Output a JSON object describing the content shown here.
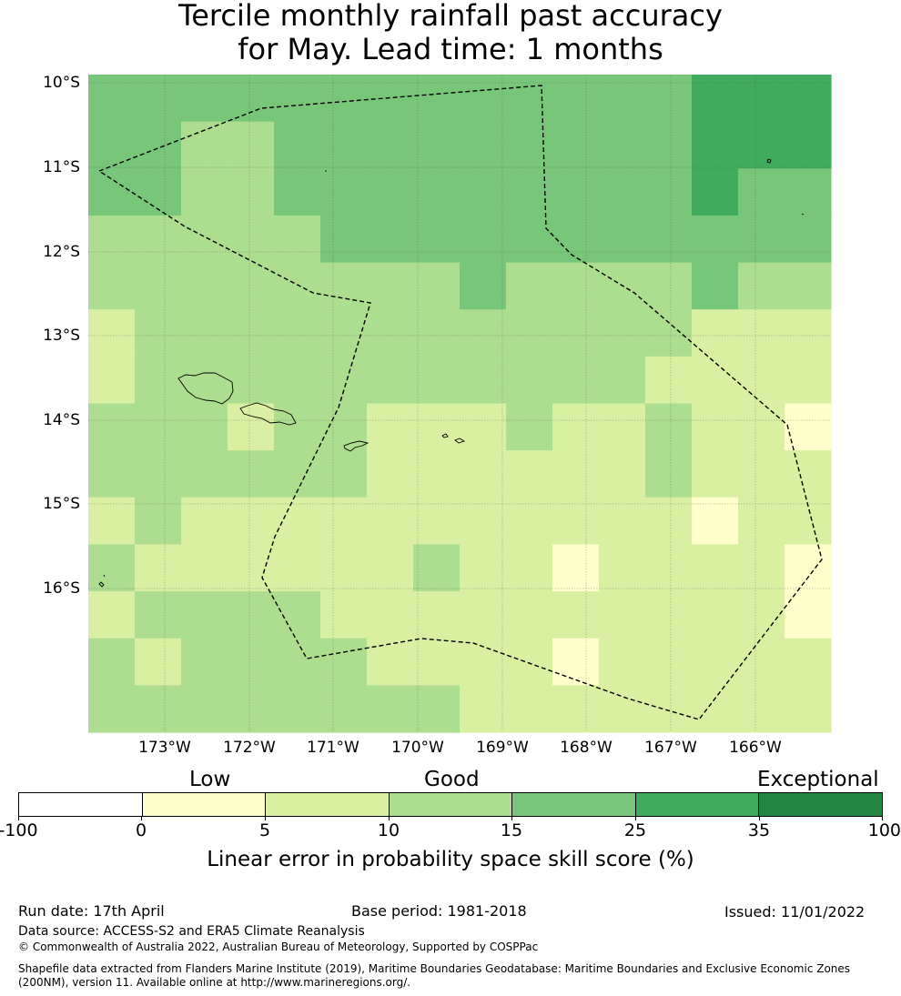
{
  "title": {
    "line1": "Tercile monthly rainfall past accuracy",
    "line2": "for May. Lead time: 1 months"
  },
  "map": {
    "lat_labels": [
      "10°S",
      "11°S",
      "12°S",
      "13°S",
      "14°S",
      "15°S",
      "16°S"
    ],
    "lon_labels": [
      "173°W",
      "172°W",
      "171°W",
      "170°W",
      "169°W",
      "168°W",
      "167°W",
      "166°W"
    ],
    "lon_range": [
      -173.9,
      -165.2
    ],
    "lat_range": [
      -17.7,
      -9.9
    ],
    "skill_grid": {
      "cols": 16,
      "rows": 14,
      "values": [
        [
          4,
          4,
          4,
          4,
          4,
          4,
          4,
          4,
          4,
          4,
          4,
          4,
          4,
          5,
          5,
          5
        ],
        [
          4,
          4,
          3,
          3,
          4,
          4,
          4,
          4,
          4,
          4,
          4,
          4,
          4,
          5,
          5,
          5
        ],
        [
          4,
          4,
          3,
          3,
          4,
          4,
          4,
          4,
          4,
          4,
          4,
          4,
          4,
          5,
          4,
          4
        ],
        [
          3,
          3,
          3,
          3,
          3,
          4,
          4,
          4,
          4,
          4,
          4,
          4,
          4,
          4,
          4,
          4
        ],
        [
          3,
          3,
          3,
          3,
          3,
          3,
          3,
          3,
          4,
          3,
          3,
          3,
          3,
          4,
          3,
          3
        ],
        [
          2,
          3,
          3,
          3,
          3,
          3,
          3,
          3,
          3,
          3,
          3,
          3,
          3,
          2,
          2,
          2
        ],
        [
          2,
          3,
          3,
          3,
          3,
          3,
          3,
          3,
          3,
          3,
          3,
          3,
          2,
          2,
          2,
          2
        ],
        [
          3,
          3,
          3,
          2,
          3,
          3,
          2,
          2,
          2,
          3,
          2,
          2,
          3,
          2,
          2,
          1
        ],
        [
          3,
          3,
          3,
          3,
          3,
          3,
          2,
          2,
          2,
          2,
          2,
          2,
          3,
          2,
          2,
          2
        ],
        [
          2,
          3,
          2,
          2,
          2,
          2,
          2,
          2,
          2,
          2,
          2,
          2,
          2,
          1,
          2,
          2
        ],
        [
          3,
          2,
          2,
          2,
          2,
          2,
          2,
          3,
          2,
          2,
          1,
          2,
          2,
          2,
          2,
          1
        ],
        [
          2,
          3,
          3,
          3,
          3,
          2,
          2,
          2,
          2,
          2,
          2,
          2,
          2,
          2,
          2,
          1
        ],
        [
          3,
          2,
          3,
          3,
          3,
          3,
          2,
          2,
          2,
          2,
          1,
          2,
          2,
          2,
          2,
          2
        ],
        [
          3,
          3,
          3,
          3,
          3,
          3,
          3,
          3,
          2,
          2,
          2,
          2,
          2,
          2,
          2,
          2
        ]
      ]
    }
  },
  "colorbar": {
    "category_labels": [
      "Low",
      "Good",
      "Exceptional"
    ],
    "ticks": [
      "-100",
      "0",
      "5",
      "10",
      "15",
      "25",
      "35",
      "100"
    ],
    "colors": [
      "#ffffff",
      "#ffffcc",
      "#d9f0a3",
      "#addd8e",
      "#78c679",
      "#41ab5d",
      "#238443"
    ],
    "title": "Linear error in probability space skill score (%)"
  },
  "footer": {
    "run_date": "Run date: 17th April",
    "base_period": "Base period: 1981-2018",
    "issued": "Issued: 11/01/2022",
    "data_source": "Data source: ACCESS-S2 and ERA5 Climate Reanalysis",
    "copyright": "© Commonwealth of Australia 2022, Australian Bureau of Meteorology, Supported by COSPPac",
    "shapefile_line1": "Shapefile data extracted from Flanders Marine Institute (2019), Maritime Boundaries Geodatabase: Maritime Boundaries and Exclusive Economic Zones",
    "shapefile_line2": "(200NM), version 11. Available online at http://www.marineregions.org/."
  }
}
